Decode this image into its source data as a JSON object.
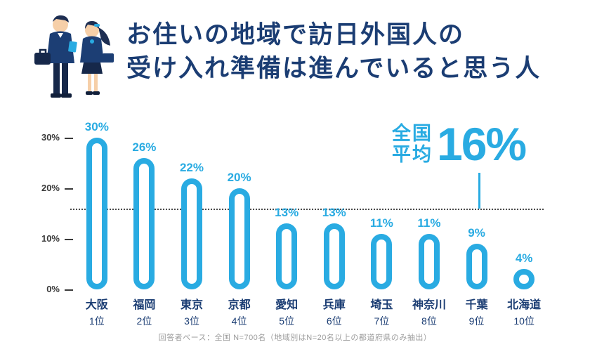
{
  "title": {
    "line1": "お住いの地域で訪日外国人の",
    "line2": "受け入れ準備は進んでいると思う人"
  },
  "annotation": {
    "label_line1": "全国",
    "label_line2": "平均",
    "value": "16%"
  },
  "footer": "回答者ベース：全国 N=700名（地域別はN=20名以上の都道府県のみ抽出）",
  "colors": {
    "navy": "#1b3d73",
    "cyan": "#29abe2",
    "text_dark": "#3a3a3a",
    "footer_gray": "#9b9b9b"
  },
  "chart_data": {
    "type": "bar",
    "title": "お住いの地域で訪日外国人の受け入れ準備は進んでいると思う人",
    "categories": [
      "大阪",
      "福岡",
      "東京",
      "京都",
      "愛知",
      "兵庫",
      "埼玉",
      "神奈川",
      "千葉",
      "北海道"
    ],
    "ranks": [
      "1位",
      "2位",
      "3位",
      "4位",
      "5位",
      "6位",
      "7位",
      "8位",
      "9位",
      "10位"
    ],
    "values": [
      30,
      26,
      22,
      20,
      13,
      13,
      11,
      11,
      9,
      4
    ],
    "value_labels": [
      "30%",
      "26%",
      "22%",
      "20%",
      "13%",
      "13%",
      "11%",
      "11%",
      "9%",
      "4%"
    ],
    "xlabel": "",
    "ylabel": "",
    "ylim": [
      0,
      32
    ],
    "yticks": [
      0,
      10,
      20,
      30
    ],
    "ytick_labels": [
      "0%",
      "10%",
      "20%",
      "30%"
    ],
    "average_line_value": 16,
    "average_line_label": "全国平均 16%",
    "grid": false,
    "legend_position": "none"
  }
}
